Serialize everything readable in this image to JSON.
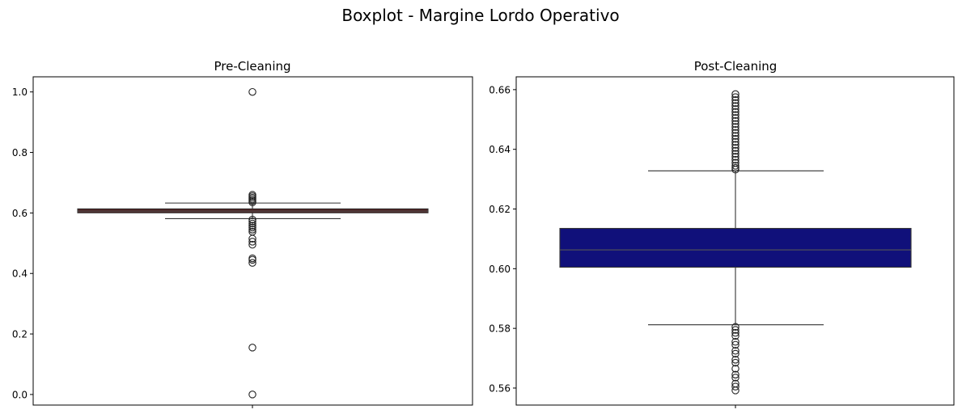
{
  "figure": {
    "suptitle": "Boxplot - Margine Lordo Operativo"
  },
  "chart_data": [
    {
      "type": "boxplot",
      "title": "Pre-Cleaning",
      "xlabel": "",
      "ylabel": "",
      "ylim": [
        -0.035,
        1.05
      ],
      "yticks": [
        0.0,
        0.2,
        0.4,
        0.6,
        0.8,
        1.0
      ],
      "ytick_labels": [
        "0.0",
        "0.2",
        "0.4",
        "0.6",
        "0.8",
        "1.0"
      ],
      "box": {
        "q1": 0.6005,
        "median": 0.6063,
        "q3": 0.6135,
        "whisker_low": 0.5812,
        "whisker_high": 0.6328
      },
      "box_color": "#4a1a1a",
      "outliers": [
        1.0,
        0.66,
        0.655,
        0.65,
        0.645,
        0.64,
        0.635,
        0.578,
        0.572,
        0.565,
        0.558,
        0.552,
        0.545,
        0.538,
        0.515,
        0.505,
        0.495,
        0.45,
        0.445,
        0.435,
        0.155,
        0.0
      ],
      "grid": false
    },
    {
      "type": "boxplot",
      "title": "Post-Cleaning",
      "xlabel": "",
      "ylabel": "",
      "ylim": [
        0.5543,
        0.6643
      ],
      "yticks": [
        0.56,
        0.58,
        0.6,
        0.62,
        0.64,
        0.66
      ],
      "ytick_labels": [
        "0.56",
        "0.58",
        "0.60",
        "0.62",
        "0.64",
        "0.66"
      ],
      "box": {
        "q1": 0.6005,
        "median": 0.6063,
        "q3": 0.6135,
        "whisker_low": 0.5812,
        "whisker_high": 0.6328
      },
      "box_color": "#10107a",
      "outliers": [
        0.6585,
        0.6575,
        0.6565,
        0.6555,
        0.6545,
        0.6535,
        0.6525,
        0.6515,
        0.6505,
        0.6495,
        0.6485,
        0.6475,
        0.6465,
        0.6455,
        0.6445,
        0.6435,
        0.6425,
        0.6415,
        0.6405,
        0.6395,
        0.6385,
        0.6375,
        0.6365,
        0.6355,
        0.6345,
        0.6338,
        0.6332,
        0.5805,
        0.5795,
        0.5785,
        0.5775,
        0.5755,
        0.5745,
        0.5725,
        0.5715,
        0.5695,
        0.5685,
        0.5665,
        0.5645,
        0.5635,
        0.5615,
        0.5605,
        0.5592
      ],
      "grid": false
    }
  ]
}
